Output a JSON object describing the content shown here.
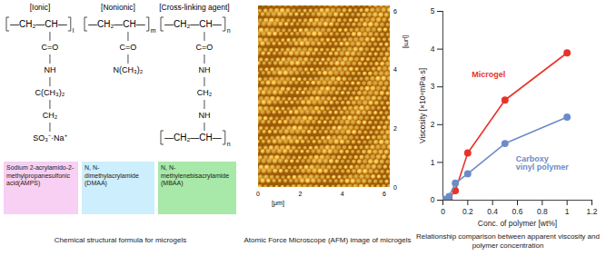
{
  "structure": {
    "headers": [
      "[Ionic]",
      "[Nonionic]",
      "[Cross-linking agent]"
    ],
    "units": [
      {
        "backbone": "—CH₂—CH—",
        "subscript": "l",
        "side_chain": [
          "C=O",
          "NH",
          "C(CH₃)₂",
          "CH₂",
          "SO₃⁻·Na⁺"
        ]
      },
      {
        "backbone": "—CH₂—CH—",
        "subscript": "m",
        "side_chain": [
          "C=O",
          "N(CH₃)₂"
        ]
      },
      {
        "backbone": "—CH₂—CH—",
        "subscript": "n",
        "side_chain": [
          "C=O",
          "NH",
          "CH₂",
          "NH"
        ],
        "end_backbone": "—CH₂—CH—",
        "end_subscript": "n"
      }
    ],
    "names": [
      {
        "text": "Sodium 2-acrylamido-2-methylpropanesulfonic acid(AMPS)",
        "color": "#f7d0f3"
      },
      {
        "text": "N, N-dimethylacrylamide (DMAA)",
        "color": "#cdeefc"
      },
      {
        "text": "N, N-methylenebisacrylamide (MBAA)",
        "color": "#a8e8a8"
      }
    ],
    "caption": "Chemical structural formula for microgels"
  },
  "afm_image": {
    "xticks": [
      0,
      2,
      4,
      6
    ],
    "yticks": [
      0,
      2,
      4,
      6
    ],
    "unit": "[μm]",
    "caption": "Atomic Force Microscope (AFM) image of microgels"
  },
  "chart_data": {
    "type": "line",
    "caption": "Relationship comparison between apparent viscosity and polymer concentration",
    "x_label": "Conc. of polymer [wt%]",
    "y_label": "Viscosity [×10⁴mPa·s]",
    "x": [
      0.01,
      0.05,
      0.1,
      0.2,
      0.5,
      1.0
    ],
    "series": [
      {
        "name": "Microgel",
        "color": "#e8332a",
        "marker": "circle",
        "values": [
          0.02,
          0.05,
          0.25,
          1.25,
          2.65,
          3.9
        ]
      },
      {
        "name": "Carboxy vinyl polymer",
        "color": "#6b8cc8",
        "marker": "circle",
        "values": [
          0.02,
          0.1,
          0.45,
          0.7,
          1.5,
          2.2
        ]
      }
    ],
    "xlim": [
      0,
      1.2
    ],
    "xticks": [
      0,
      0.2,
      0.4,
      0.6,
      0.8,
      1,
      1.2
    ],
    "ylim": [
      0,
      5
    ],
    "yticks": [
      0,
      1,
      2,
      3,
      4,
      5
    ],
    "grid": false
  }
}
